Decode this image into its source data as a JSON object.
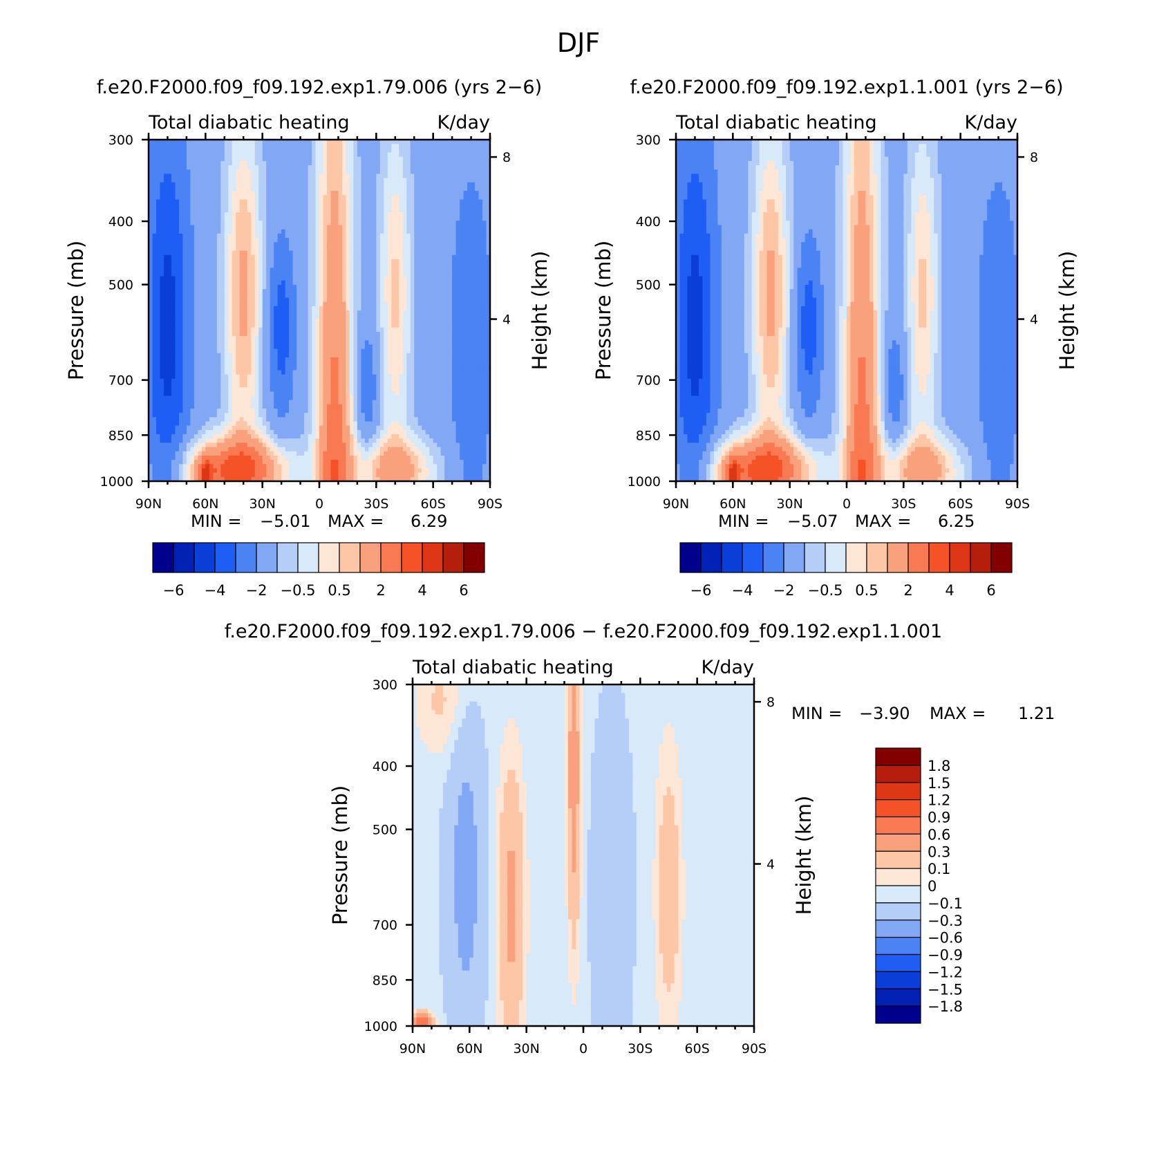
{
  "page_title": "DJF",
  "chart_data": [
    {
      "type": "heatmap",
      "id": "exp1-79-006",
      "title": "f.e20.F2000.f09_f09.192.exp1.79.006 (yrs 2−6)",
      "left_string": "Total diabatic heating",
      "right_string": "K/day",
      "xlabel": "",
      "ylabel": "Pressure (mb)",
      "ylabel_right": "Height (km)",
      "x_ticks": [
        "90N",
        "60N",
        "30N",
        "0",
        "30S",
        "60S",
        "90S"
      ],
      "y_ticks": [
        "300",
        "400",
        "500",
        "700",
        "850",
        "1000"
      ],
      "y_right_ticks": [
        "8",
        "4"
      ],
      "ylim": [
        1000,
        300
      ],
      "y_scale": "log",
      "stats": {
        "min_label": "MIN =",
        "min": "−5.01",
        "max_label": "MAX =",
        "max": "6.29"
      },
      "colorbar": {
        "orientation": "horizontal",
        "levels": [
          -6,
          -5,
          -4,
          -3,
          -2,
          -1,
          -0.5,
          0,
          0.5,
          1,
          2,
          3,
          4,
          5,
          6
        ],
        "tick_labels": [
          "−6",
          "−4",
          "−2",
          "−0.5",
          "0.5",
          "2",
          "4",
          "6"
        ],
        "colors": [
          "#00008c",
          "#0021b4",
          "#0a3ed8",
          "#1e5ef5",
          "#4b83f5",
          "#82a8f5",
          "#b4cef7",
          "#d8e9f9",
          "#fde6d6",
          "#fcc6a7",
          "#f9a07d",
          "#f87952",
          "#f65227",
          "#dc3614",
          "#b41e0a",
          "#820000"
        ]
      }
    },
    {
      "type": "heatmap",
      "id": "exp1-1-001",
      "title": "f.e20.F2000.f09_f09.192.exp1.1.001 (yrs 2−6)",
      "left_string": "Total diabatic heating",
      "right_string": "K/day",
      "xlabel": "",
      "ylabel": "Pressure (mb)",
      "ylabel_right": "Height (km)",
      "x_ticks": [
        "90N",
        "60N",
        "30N",
        "0",
        "30S",
        "60S",
        "90S"
      ],
      "y_ticks": [
        "300",
        "400",
        "500",
        "700",
        "850",
        "1000"
      ],
      "y_right_ticks": [
        "8",
        "4"
      ],
      "ylim": [
        1000,
        300
      ],
      "y_scale": "log",
      "stats": {
        "min_label": "MIN =",
        "min": "−5.07",
        "max_label": "MAX =",
        "max": "6.25"
      },
      "colorbar": {
        "orientation": "horizontal",
        "levels": [
          -6,
          -5,
          -4,
          -3,
          -2,
          -1,
          -0.5,
          0,
          0.5,
          1,
          2,
          3,
          4,
          5,
          6
        ],
        "tick_labels": [
          "−6",
          "−4",
          "−2",
          "−0.5",
          "0.5",
          "2",
          "4",
          "6"
        ],
        "colors": [
          "#00008c",
          "#0021b4",
          "#0a3ed8",
          "#1e5ef5",
          "#4b83f5",
          "#82a8f5",
          "#b4cef7",
          "#d8e9f9",
          "#fde6d6",
          "#fcc6a7",
          "#f9a07d",
          "#f87952",
          "#f65227",
          "#dc3614",
          "#b41e0a",
          "#820000"
        ]
      }
    },
    {
      "type": "heatmap",
      "id": "difference",
      "title": "f.e20.F2000.f09_f09.192.exp1.79.006 − f.e20.F2000.f09_f09.192.exp1.1.001",
      "left_string": "Total diabatic heating",
      "right_string": "K/day",
      "xlabel": "",
      "ylabel": "Pressure (mb)",
      "ylabel_right": "Height (km)",
      "x_ticks": [
        "90N",
        "60N",
        "30N",
        "0",
        "30S",
        "60S",
        "90S"
      ],
      "y_ticks": [
        "300",
        "400",
        "500",
        "700",
        "850",
        "1000"
      ],
      "y_right_ticks": [
        "8",
        "4"
      ],
      "ylim": [
        1000,
        300
      ],
      "y_scale": "log",
      "stats": {
        "min_label": "MIN =",
        "min": "−3.90",
        "max_label": "MAX =",
        "max": "1.21"
      },
      "colorbar": {
        "orientation": "vertical",
        "levels": [
          -1.8,
          -1.5,
          -1.2,
          -0.9,
          -0.6,
          -0.3,
          -0.1,
          0,
          0.1,
          0.3,
          0.6,
          0.9,
          1.2,
          1.5,
          1.8
        ],
        "tick_labels": [
          "−1.8",
          "−1.5",
          "−1.2",
          "−0.9",
          "−0.6",
          "−0.3",
          "−0.1",
          "0",
          "0.1",
          "0.3",
          "0.6",
          "0.9",
          "1.2",
          "1.5",
          "1.8"
        ],
        "colors": [
          "#00008c",
          "#0021b4",
          "#0a3ed8",
          "#1e5ef5",
          "#4b83f5",
          "#82a8f5",
          "#b4cef7",
          "#d8e9f9",
          "#fde6d6",
          "#fcc6a7",
          "#f9a07d",
          "#f87952",
          "#f65227",
          "#dc3614",
          "#b41e0a",
          "#820000"
        ]
      }
    }
  ]
}
